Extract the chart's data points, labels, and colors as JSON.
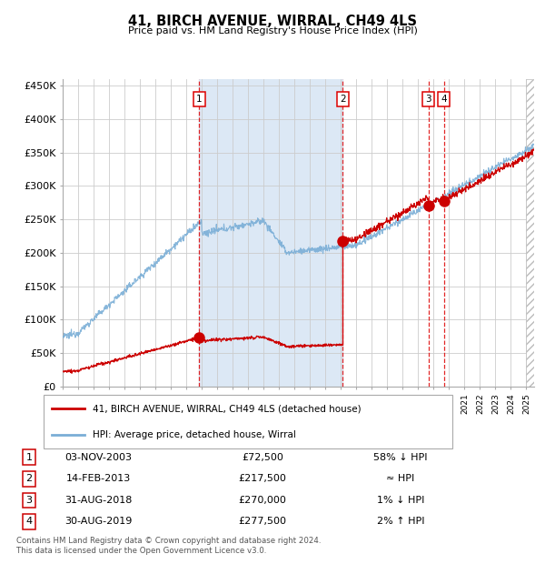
{
  "title": "41, BIRCH AVENUE, WIRRAL, CH49 4LS",
  "subtitle": "Price paid vs. HM Land Registry's House Price Index (HPI)",
  "ylabel_ticks": [
    "£0",
    "£50K",
    "£100K",
    "£150K",
    "£200K",
    "£250K",
    "£300K",
    "£350K",
    "£400K",
    "£450K"
  ],
  "ytick_values": [
    0,
    50000,
    100000,
    150000,
    200000,
    250000,
    300000,
    350000,
    400000,
    450000
  ],
  "ylim": [
    0,
    460000
  ],
  "xlim_start": 1995.0,
  "xlim_end": 2025.5,
  "background_color": "#ffffff",
  "plot_bg_color": "#ffffff",
  "grid_color": "#cccccc",
  "shaded_region": [
    2003.83,
    2013.12
  ],
  "shaded_color": "#dce8f5",
  "sale_dates": [
    2003.83,
    2013.12,
    2018.66,
    2019.66
  ],
  "sale_prices": [
    72500,
    217500,
    270000,
    277500
  ],
  "sale_labels": [
    "1",
    "2",
    "3",
    "4"
  ],
  "vline_color": "#dd0000",
  "sale_marker_color": "#cc0000",
  "sale_marker_size": 8,
  "legend_label_red": "41, BIRCH AVENUE, WIRRAL, CH49 4LS (detached house)",
  "legend_label_blue": "HPI: Average price, detached house, Wirral",
  "red_line_color": "#cc0000",
  "blue_line_color": "#7aaed6",
  "table_rows": [
    [
      "1",
      "03-NOV-2003",
      "£72,500",
      "58% ↓ HPI"
    ],
    [
      "2",
      "14-FEB-2013",
      "£217,500",
      "≈ HPI"
    ],
    [
      "3",
      "31-AUG-2018",
      "£270,000",
      "1% ↓ HPI"
    ],
    [
      "4",
      "30-AUG-2019",
      "£277,500",
      "2% ↑ HPI"
    ]
  ],
  "footnote": "Contains HM Land Registry data © Crown copyright and database right 2024.\nThis data is licensed under the Open Government Licence v3.0.",
  "hatch_start": 2025.0
}
